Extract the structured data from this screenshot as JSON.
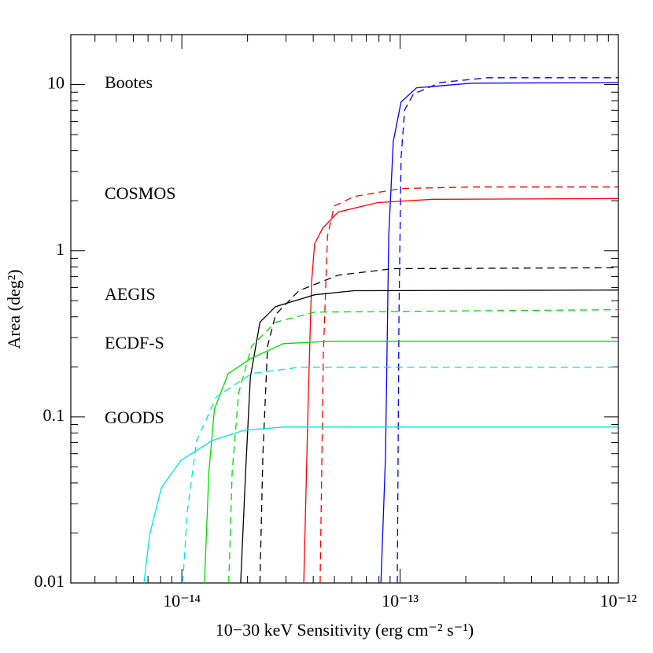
{
  "chart_data": {
    "type": "line",
    "xlabel": "10−30 keV Sensitivity (erg cm⁻² s⁻¹)",
    "ylabel": "Area (deg²)",
    "xscale": "log",
    "yscale": "log",
    "xlim": [
      3.1e-15,
      1e-12
    ],
    "ylim": [
      0.01,
      20
    ],
    "xticks": [
      {
        "value": 1e-14,
        "label": "10⁻¹⁴"
      },
      {
        "value": 1e-13,
        "label": "10⁻¹³"
      },
      {
        "value": 1e-12,
        "label": "10⁻¹²"
      }
    ],
    "yticks": [
      0.01,
      0.1,
      1,
      10
    ],
    "annotations": [
      "Bootes",
      "COSMOS",
      "AEGIS",
      "ECDF-S",
      "GOODS"
    ],
    "series": [
      {
        "color": "#0000ff",
        "dash": false,
        "x": [
          8.17e-14,
          8.57e-14,
          8.87e-14,
          9.31e-14,
          1.01e-13,
          1.19e-13,
          2.14e-13,
          1e-12
        ],
        "values": [
          0.01,
          0.058,
          1.23,
          4.56,
          7.86,
          9.57,
          10.2,
          10.3
        ]
      },
      {
        "color": "#0000ff",
        "dash": true,
        "x": [
          9.71e-14,
          9.88e-14,
          1.01e-13,
          1.05e-13,
          1.15e-13,
          1.53e-13,
          2.52e-13,
          1e-12
        ],
        "values": [
          0.01,
          0.413,
          3.66,
          7.05,
          8.77,
          10.3,
          11.0,
          11.0
        ]
      },
      {
        "color": "#ff0000",
        "dash": false,
        "x": [
          3.62e-14,
          3.8e-14,
          3.93e-14,
          4.06e-14,
          4.42e-14,
          5.21e-14,
          7.89e-14,
          1.41e-13,
          1e-12
        ],
        "values": [
          0.01,
          0.139,
          0.64,
          1.1,
          1.37,
          1.71,
          1.95,
          2.04,
          2.06
        ]
      },
      {
        "color": "#ff0000",
        "dash": true,
        "x": [
          4.3e-14,
          4.45e-14,
          4.65e-14,
          5e-14,
          6.15e-14,
          1.01e-13,
          2.14e-13,
          1e-12
        ],
        "values": [
          0.01,
          0.239,
          1.23,
          1.86,
          2.12,
          2.37,
          2.42,
          2.42
        ]
      },
      {
        "color": "#000000",
        "dash": false,
        "x": [
          1.86e-14,
          1.96e-14,
          2.06e-14,
          2.28e-14,
          2.69e-14,
          4.06e-14,
          6.15e-14,
          1e-12
        ],
        "values": [
          0.01,
          0.0466,
          0.173,
          0.371,
          0.461,
          0.543,
          0.575,
          0.58
        ]
      },
      {
        "color": "#000000",
        "dash": true,
        "x": [
          2.28e-14,
          2.35e-14,
          2.47e-14,
          2.69e-14,
          3.44e-14,
          5.21e-14,
          9.31e-14,
          1e-12
        ],
        "values": [
          0.01,
          0.058,
          0.267,
          0.413,
          0.575,
          0.713,
          0.78,
          0.79
        ]
      },
      {
        "color": "#00dd00",
        "dash": false,
        "x": [
          1.27e-14,
          1.33e-14,
          1.41e-14,
          1.63e-14,
          2.09e-14,
          2.92e-14,
          4.8e-14,
          1e-12
        ],
        "values": [
          0.01,
          0.0466,
          0.111,
          0.182,
          0.226,
          0.276,
          0.285,
          0.285
        ]
      },
      {
        "color": "#00dd00",
        "dash": true,
        "x": [
          1.64e-14,
          1.7e-14,
          1.82e-14,
          2.09e-14,
          2.69e-14,
          4.06e-14,
          1e-12
        ],
        "values": [
          0.01,
          0.0466,
          0.139,
          0.267,
          0.371,
          0.427,
          0.442
        ]
      },
      {
        "color": "#00e5e5",
        "dash": false,
        "x": [
          6.71e-15,
          7.12e-15,
          8.06e-15,
          9.92e-15,
          1.38e-14,
          1.93e-14,
          2.92e-14,
          1e-12
        ],
        "values": [
          0.01,
          0.0195,
          0.0374,
          0.0548,
          0.0721,
          0.083,
          0.0868,
          0.0868
        ]
      },
      {
        "color": "#00e5e5",
        "dash": true,
        "x": [
          1.01e-14,
          1.06e-14,
          1.17e-14,
          1.44e-14,
          2.09e-14,
          3.44e-14,
          1e-12
        ],
        "values": [
          0.01,
          0.027,
          0.0721,
          0.132,
          0.182,
          0.199,
          0.199
        ]
      }
    ]
  }
}
